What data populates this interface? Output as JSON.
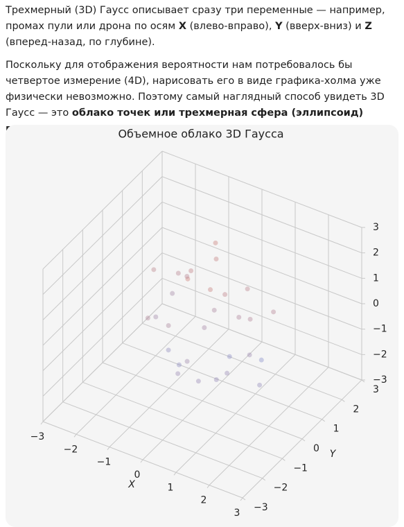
{
  "text": {
    "paragraphs": [
      [
        "Трехмерный (3D) Гаусс описывает сразу три переменные — например, промах пули или дрона по осям ",
        "X",
        " (влево-вправо), ",
        "Y",
        " (вверх-вниз) и ",
        "Z",
        " (вперед-назад, по глубине)."
      ],
      [
        "Поскольку для отображения вероятности нам потребовалось бы четвертое измерение (4D), нарисовать его в виде графика-холма уже физически невозможно. Поэтому самый наглядный способ увидеть 3D Гаусс — это ",
        "облако точек или трехмерная сфера (эллипсоид) вероятности",
        "."
      ]
    ]
  },
  "chart_data": {
    "type": "scatter3d",
    "title": "Объемное облако 3D Гаусса",
    "xlabel": "X",
    "ylabel": "Y",
    "x": [
      0.5,
      -1.2,
      1.1,
      -0.3,
      0.8,
      -0.9,
      0.2,
      1.6,
      -1.7,
      0.0,
      0.9,
      -0.5,
      1.3,
      -1.1,
      0.4,
      -0.2,
      0.7,
      -1.4,
      1.9,
      -0.7,
      0.1,
      -0.6,
      1.0,
      -1.0,
      0.3,
      0.6,
      -1.5,
      1.2,
      -0.4,
      0.0
    ],
    "y": [
      0.3,
      0.8,
      -0.6,
      1.2,
      0.5,
      -0.2,
      -1.1,
      0.9,
      0.4,
      0.1,
      -0.8,
      1.5,
      0.2,
      -0.9,
      0.7,
      -0.4,
      1.1,
      0.0,
      -0.3,
      0.6,
      -1.4,
      -0.7,
      1.3,
      0.9,
      -0.1,
      -1.2,
      1.0,
      0.4,
      -0.5,
      0.6
    ],
    "z": [
      1.2,
      0.8,
      -0.9,
      1.5,
      0.3,
      -1.3,
      -0.5,
      0.6,
      1.0,
      -0.2,
      -1.1,
      1.8,
      -0.7,
      0.4,
      -1.6,
      2.0,
      0.9,
      -0.4,
      -1.2,
      1.3,
      -0.8,
      0.2,
      -1.9,
      0.7,
      1.6,
      -1.0,
      -0.3,
      0.5,
      -1.4,
      0.1
    ],
    "cmap": [
      "#6f8fe0",
      "#e07a5f"
    ],
    "xlim": [
      -3,
      3
    ],
    "ylim": [
      -3,
      3
    ],
    "zlim": [
      -3,
      3
    ],
    "xticks": [
      {
        "value": -3,
        "label": "−3"
      },
      {
        "value": -2,
        "label": "−2"
      },
      {
        "value": -1,
        "label": "−1"
      },
      0,
      1,
      2,
      3
    ],
    "yticks": [
      {
        "value": -3,
        "label": "−3"
      },
      {
        "value": -2,
        "label": "−2"
      },
      {
        "value": -1,
        "label": "−1"
      },
      0,
      1,
      2,
      3
    ],
    "zticks": [
      {
        "value": -3,
        "label": "−3"
      },
      {
        "value": -2,
        "label": "−2"
      },
      {
        "value": -1,
        "label": "−1"
      },
      0,
      1,
      2,
      3
    ],
    "grid": true
  }
}
